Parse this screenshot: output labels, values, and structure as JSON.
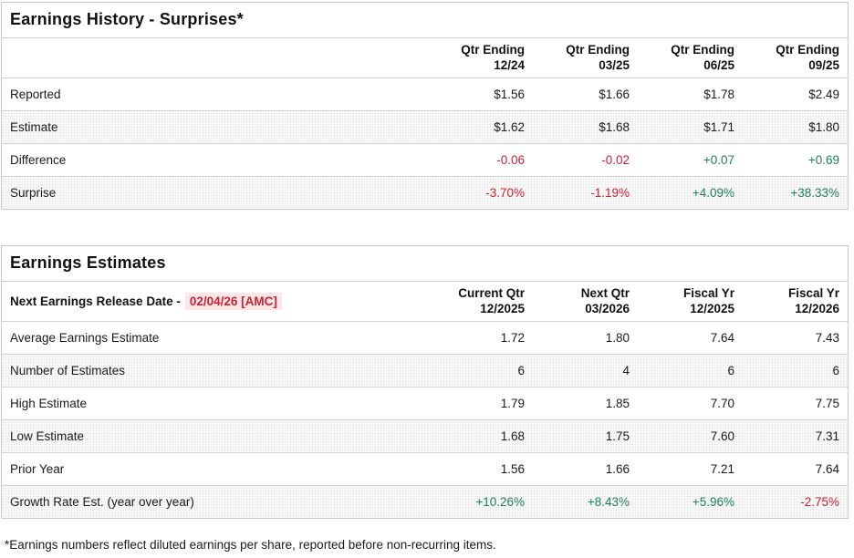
{
  "colors": {
    "negative": "#cb2233",
    "positive": "#1e7e5e",
    "date_highlight_bg": "#fbe7e7",
    "table_border": "#c9c9c9"
  },
  "surprises": {
    "title": "Earnings History - Surprises*",
    "columns": [
      {
        "line1": "Qtr Ending",
        "line2": "12/24"
      },
      {
        "line1": "Qtr Ending",
        "line2": "03/25"
      },
      {
        "line1": "Qtr Ending",
        "line2": "06/25"
      },
      {
        "line1": "Qtr Ending",
        "line2": "09/25"
      }
    ],
    "rows": [
      {
        "label": "Reported",
        "values": [
          {
            "text": "$1.56",
            "tone": ""
          },
          {
            "text": "$1.66",
            "tone": ""
          },
          {
            "text": "$1.78",
            "tone": ""
          },
          {
            "text": "$2.49",
            "tone": ""
          }
        ]
      },
      {
        "label": "Estimate",
        "values": [
          {
            "text": "$1.62",
            "tone": ""
          },
          {
            "text": "$1.68",
            "tone": ""
          },
          {
            "text": "$1.71",
            "tone": ""
          },
          {
            "text": "$1.80",
            "tone": ""
          }
        ]
      },
      {
        "label": "Difference",
        "values": [
          {
            "text": "-0.06",
            "tone": "neg"
          },
          {
            "text": "-0.02",
            "tone": "neg"
          },
          {
            "text": "+0.07",
            "tone": "pos"
          },
          {
            "text": "+0.69",
            "tone": "pos"
          }
        ]
      },
      {
        "label": "Surprise",
        "values": [
          {
            "text": "-3.70%",
            "tone": "neg"
          },
          {
            "text": "-1.19%",
            "tone": "neg"
          },
          {
            "text": "+4.09%",
            "tone": "pos"
          },
          {
            "text": "+38.33%",
            "tone": "pos"
          }
        ]
      }
    ]
  },
  "estimates": {
    "title": "Earnings Estimates",
    "release_label": "Next Earnings Release Date -",
    "release_date": "02/04/26 [AMC]",
    "columns": [
      {
        "line1": "Current Qtr",
        "line2": "12/2025"
      },
      {
        "line1": "Next Qtr",
        "line2": "03/2026"
      },
      {
        "line1": "Fiscal Yr",
        "line2": "12/2025"
      },
      {
        "line1": "Fiscal Yr",
        "line2": "12/2026"
      }
    ],
    "rows": [
      {
        "label": "Average Earnings Estimate",
        "values": [
          {
            "text": "1.72",
            "tone": ""
          },
          {
            "text": "1.80",
            "tone": ""
          },
          {
            "text": "7.64",
            "tone": ""
          },
          {
            "text": "7.43",
            "tone": ""
          }
        ]
      },
      {
        "label": "Number of Estimates",
        "values": [
          {
            "text": "6",
            "tone": ""
          },
          {
            "text": "4",
            "tone": ""
          },
          {
            "text": "6",
            "tone": ""
          },
          {
            "text": "6",
            "tone": ""
          }
        ]
      },
      {
        "label": "High Estimate",
        "values": [
          {
            "text": "1.79",
            "tone": ""
          },
          {
            "text": "1.85",
            "tone": ""
          },
          {
            "text": "7.70",
            "tone": ""
          },
          {
            "text": "7.75",
            "tone": ""
          }
        ]
      },
      {
        "label": "Low Estimate",
        "values": [
          {
            "text": "1.68",
            "tone": ""
          },
          {
            "text": "1.75",
            "tone": ""
          },
          {
            "text": "7.60",
            "tone": ""
          },
          {
            "text": "7.31",
            "tone": ""
          }
        ]
      },
      {
        "label": "Prior Year",
        "values": [
          {
            "text": "1.56",
            "tone": ""
          },
          {
            "text": "1.66",
            "tone": ""
          },
          {
            "text": "7.21",
            "tone": ""
          },
          {
            "text": "7.64",
            "tone": ""
          }
        ]
      },
      {
        "label": "Growth Rate Est. (year over year)",
        "values": [
          {
            "text": "+10.26%",
            "tone": "pos"
          },
          {
            "text": "+8.43%",
            "tone": "pos"
          },
          {
            "text": "+5.96%",
            "tone": "pos"
          },
          {
            "text": "-2.75%",
            "tone": "neg"
          }
        ]
      }
    ]
  },
  "footnote": "*Earnings numbers reflect diluted earnings per share, reported before non-recurring items."
}
